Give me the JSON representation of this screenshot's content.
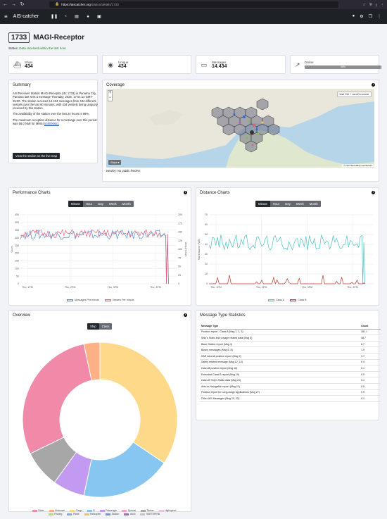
{
  "browser": {
    "url_host": "https://aiscatcher.org",
    "url_path": "/station/details/1733"
  },
  "app": {
    "brand": "AIS-catcher"
  },
  "station": {
    "id": "1733",
    "name": "MAGI-Receptor",
    "status_label": "Status:",
    "status_text": "Data received within the last hour"
  },
  "stats": {
    "ships_label": "Ships",
    "ships_value": "434",
    "unique_label": "Unique",
    "unique_value": "434",
    "messages_label": "Messages",
    "messages_value": "14.434",
    "online_label": "Online",
    "online_bar": "98%",
    "online_fraction": 0.98
  },
  "summary": {
    "title": "Summary",
    "p1": "AIS Receiver Station MAGI-Receptor (ID: 1733) in Panama City, Panama last sent a message Thursday, 2025, 17:01:14 GMT-05:00. The station received 14.434 messages from 434 different vessels over the last 60 minutes, with 434 vessels being uniquely received by this station.",
    "p2": "The availability of the station over the last 24 hours is 98%.",
    "p3_pre": "The maximum reception distance for a message over this period was 58.0 NMI for MMSI ",
    "p3_link": "538090621",
    "button": "View the station on the live map"
  },
  "coverage": {
    "title": "Coverage",
    "zoom_in": "+",
    "zoom_out": "−",
    "hint": "Use Ctrl + scroll to zoom",
    "ships_btn": "Ships ▾",
    "attribution": "© OpenStreetMap contributors",
    "nearby_label": "Nearby:",
    "nearby_value": "No public feeders"
  },
  "perf": {
    "title": "Performance Charts",
    "tabs": [
      "Minute",
      "Hour",
      "Day",
      "Week",
      "Month"
    ],
    "active_tab": "Minute"
  },
  "dist": {
    "title": "Distance Charts",
    "tabs": [
      "Minute",
      "Hour",
      "Day",
      "Week",
      "Month"
    ],
    "active_tab": "Minute"
  },
  "overview": {
    "title": "Overview",
    "toggle": [
      "Ship",
      "Class"
    ],
    "active_toggle": "Ship"
  },
  "mts": {
    "title": "Message Type Statistics",
    "col_type": "Message Type",
    "col_count": "Count",
    "rows": [
      {
        "type": "Position report - Class A (Msg 1, 2, 3)",
        "count": "181.1"
      },
      {
        "type": "Ship's Static and voyage related data (Msg 5)",
        "count": "48.7"
      },
      {
        "type": "Base Station report (Msg 4)",
        "count": "6.7"
      },
      {
        "type": "Binary messages (Msg 6, 8)",
        "count": "1.9"
      },
      {
        "type": "SAR Aircraft position report (Msg 9)",
        "count": "0.7"
      },
      {
        "type": "Safety related message (Msg 12, 14)",
        "count": "0.4"
      },
      {
        "type": "Class B position report (Msg 18)",
        "count": "5.1"
      },
      {
        "type": "Extended Class B report (Msg 19)",
        "count": "0.0"
      },
      {
        "type": "Class B Ship's Static data (Msg 24)",
        "count": "0.1"
      },
      {
        "type": "Aids-to-Navigation report (Msg 21)",
        "count": "0.5"
      },
      {
        "type": "Position report for Long-range applications (Msg 27)",
        "count": "0.9"
      },
      {
        "type": "Other AIS Messages (Msg 10, 22)",
        "count": "0.1"
      }
    ]
  },
  "chart_data": [
    {
      "type": "line",
      "name": "Performance Charts",
      "x_ticks": [
        "Thu, 1PM",
        "Thu, 2PM",
        "Thu, 3PM",
        "Thu, 4PM"
      ],
      "ylabel": "Count",
      "ylim": [
        0,
        450
      ],
      "y_ticks": [
        "0",
        "50",
        "100",
        "150",
        "200",
        "250",
        "300",
        "350",
        "400",
        "450"
      ],
      "y2label": "Unique Count",
      "y2lim": [
        0,
        200
      ],
      "y2_ticks": [
        "0",
        "25",
        "50",
        "75",
        "100",
        "125",
        "150",
        "175",
        "200"
      ],
      "grid": true,
      "series": [
        {
          "name": "Messages Per minute",
          "color": "#4a8fd6",
          "base": 320,
          "amp": 30,
          "axis": "left"
        },
        {
          "name": "Vessels Per minute",
          "color": "#e0607a",
          "base": 145,
          "amp": 12,
          "axis": "right"
        }
      ],
      "legend": "bottom"
    },
    {
      "type": "line",
      "name": "Distance Charts",
      "x_ticks": [
        "Thu, 1PM",
        "Thu, 2PM",
        "Thu, 3PM",
        "Thu, 4PM"
      ],
      "ylabel": "Max Distance (NMI)",
      "ylim": [
        0,
        70
      ],
      "y_ticks": [
        "0",
        "10",
        "20",
        "30",
        "40",
        "50",
        "60",
        "70"
      ],
      "grid": true,
      "series": [
        {
          "name": "Class A",
          "color": "#4bc0c0",
          "base": 42,
          "amp": 8
        },
        {
          "name": "Class B",
          "color": "#c0392b",
          "base": 1,
          "amp": 3
        }
      ],
      "legend": "bottom"
    },
    {
      "type": "pie",
      "name": "Overview",
      "labels": [
        "Other",
        "Unknown",
        "Cargo",
        "B",
        "Passenger",
        "Special",
        "Tanker",
        "Highspeed",
        "Fishing",
        "Plane",
        "Helicopter",
        "Station",
        "AtoN",
        "SARTEPIRB"
      ],
      "colors": [
        "#f08aa8",
        "#ffb085",
        "#ffd98a",
        "#87c6f0",
        "#c39af2",
        "#f7a3c8",
        "#a7a7a7",
        "#e8c4e0",
        "#b8d38a",
        "#8fa9e8",
        "#f5c26b",
        "#7b8fd6",
        "#9a6fb5",
        "#c5c5c5"
      ],
      "values": [
        26,
        3,
        31,
        17,
        6,
        0,
        7,
        0,
        0,
        0,
        0,
        0,
        0,
        0
      ],
      "legend": "bottom"
    }
  ]
}
